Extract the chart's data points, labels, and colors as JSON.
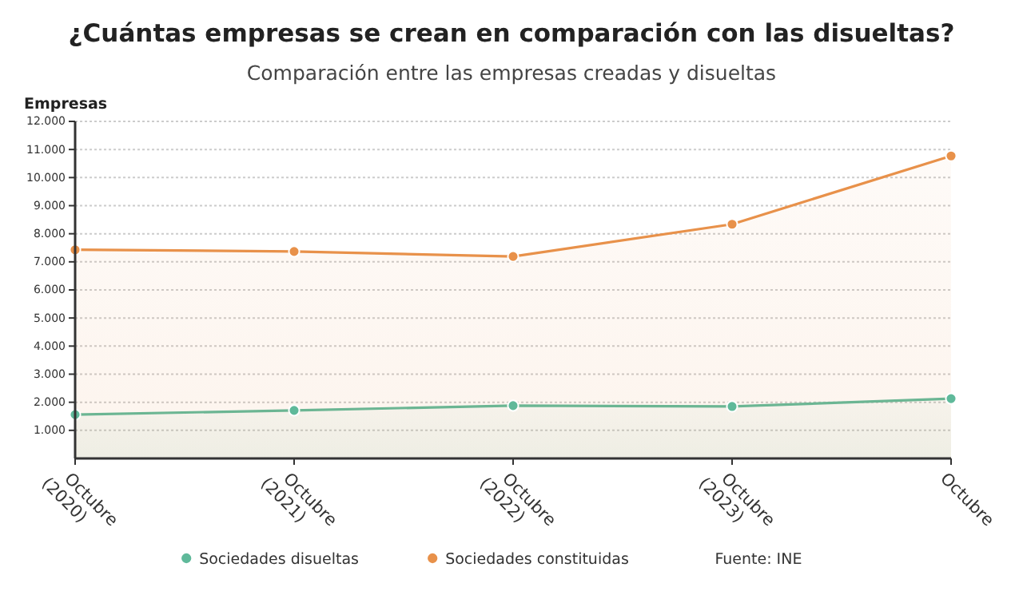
{
  "chart_data": {
    "type": "area",
    "title": "¿Cuántas empresas se crean en comparación con las disueltas?",
    "subtitle": "Comparación entre las empresas creadas y disueltas",
    "ylabel": "Empresas",
    "categories": [
      "Octubre\n(2020)",
      "Octubre\n(2021)",
      "Octubre\n(2022)",
      "Octubre\n(2023)",
      "Octubre"
    ],
    "series": [
      {
        "name": "Sociedades disueltas",
        "color": "#5fb99a",
        "values": [
          1560,
          1710,
          1880,
          1850,
          2130
        ]
      },
      {
        "name": "Sociedades constituidas",
        "color": "#e8914a",
        "values": [
          7430,
          7370,
          7190,
          8340,
          10770
        ]
      }
    ],
    "ylim": [
      0,
      12000
    ],
    "yticks": [
      {
        "value": 1000,
        "label": "1.000"
      },
      {
        "value": 2000,
        "label": "2.000"
      },
      {
        "value": 3000,
        "label": "3.000"
      },
      {
        "value": 4000,
        "label": "4.000"
      },
      {
        "value": 5000,
        "label": "5.000"
      },
      {
        "value": 6000,
        "label": "6.000"
      },
      {
        "value": 7000,
        "label": "7.000"
      },
      {
        "value": 8000,
        "label": "8.000"
      },
      {
        "value": 9000,
        "label": "9.000"
      },
      {
        "value": 10000,
        "label": "10.000"
      },
      {
        "value": 11000,
        "label": "11.000"
      },
      {
        "value": 12000,
        "label": "12.000"
      }
    ],
    "grid": "y",
    "legend": "bottom",
    "marker": "circle",
    "annotations": [
      "Fuente: INE"
    ]
  }
}
